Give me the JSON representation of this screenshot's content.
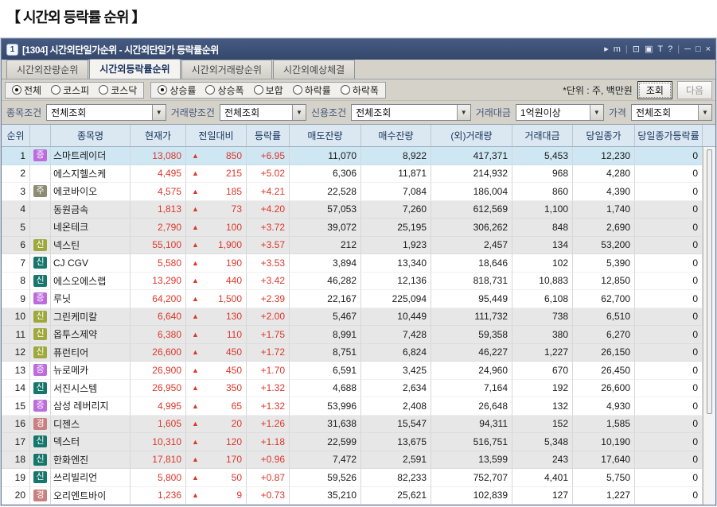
{
  "page_title": "【 시간외 등락률 순위 】",
  "window": {
    "badge": "1",
    "title": "[1304] 시간외단일가순위 - 시간외단일가 등락률순위",
    "titlebar_icons": [
      {
        "glyph": "▸",
        "name": "play-icon"
      },
      {
        "glyph": "m",
        "name": "m-icon"
      },
      {
        "glyph": "|",
        "name": "separator"
      },
      {
        "glyph": "⊡",
        "name": "restore-icon"
      },
      {
        "glyph": "▣",
        "name": "cascade-icon"
      },
      {
        "glyph": "T",
        "name": "font-icon"
      },
      {
        "glyph": "?",
        "name": "help-icon"
      },
      {
        "glyph": "|",
        "name": "separator"
      },
      {
        "glyph": "─",
        "name": "minimize-icon"
      },
      {
        "glyph": "□",
        "name": "maximize-icon"
      },
      {
        "glyph": "×",
        "name": "close-icon"
      }
    ]
  },
  "tabs": [
    {
      "label": "시간외잔량순위",
      "active": false
    },
    {
      "label": "시간외등락률순위",
      "active": true
    },
    {
      "label": "시간외거래량순위",
      "active": false
    },
    {
      "label": "시간외예상체결",
      "active": false
    }
  ],
  "radio_groups": [
    {
      "options": [
        {
          "label": "전체",
          "checked": true
        },
        {
          "label": "코스피",
          "checked": false
        },
        {
          "label": "코스닥",
          "checked": false
        }
      ]
    },
    {
      "options": [
        {
          "label": "상승률",
          "checked": true
        },
        {
          "label": "상승폭",
          "checked": false
        },
        {
          "label": "보합",
          "checked": false
        },
        {
          "label": "하락률",
          "checked": false
        },
        {
          "label": "하락폭",
          "checked": false
        }
      ]
    }
  ],
  "controls": {
    "unit_label": "*단위 : 주, 백만원",
    "inquire_label": "조회",
    "next_label": "다음"
  },
  "filters": [
    {
      "label": "종목조건",
      "value": "전체조회"
    },
    {
      "label": "거래량조건",
      "value": "전체조회"
    },
    {
      "label": "신용조건",
      "value": "전체조회"
    },
    {
      "label": "거래대금",
      "value": "1억원이상"
    },
    {
      "label": "가격",
      "value": "전체조회"
    }
  ],
  "table": {
    "columns": [
      "순위",
      "",
      "종목명",
      "현재가",
      "전일대비",
      "등락률",
      "매도잔량",
      "매수잔량",
      "(외)거래량",
      "거래대금",
      "당일종가",
      "당일종가등락률"
    ],
    "marker_colors": {
      "증": "#bd6cdd",
      "주": "#8c8c74",
      "신_olive": "#9fa93b",
      "신_teal": "#16766c",
      "경": "#c98080"
    },
    "up_triangle": "▲",
    "rows": [
      {
        "rank": "1",
        "marker": "증",
        "marker_style": "증",
        "name": "스마트레이더",
        "price": "13,080",
        "change": "850",
        "rate": "+6.95",
        "ask": "11,070",
        "bid": "8,922",
        "volume": "417,371",
        "value": "5,453",
        "close": "12,230",
        "close_rate": "0",
        "selected": true
      },
      {
        "rank": "2",
        "marker": "",
        "marker_style": "",
        "name": "에스지헬스케",
        "price": "4,495",
        "change": "215",
        "rate": "+5.02",
        "ask": "6,306",
        "bid": "11,871",
        "volume": "214,932",
        "value": "968",
        "close": "4,280",
        "close_rate": "0",
        "selected": false
      },
      {
        "rank": "3",
        "marker": "주",
        "marker_style": "주",
        "name": "에코바이오",
        "price": "4,575",
        "change": "185",
        "rate": "+4.21",
        "ask": "22,528",
        "bid": "7,084",
        "volume": "186,004",
        "value": "860",
        "close": "4,390",
        "close_rate": "0",
        "selected": false
      },
      {
        "rank": "4",
        "marker": "",
        "marker_style": "",
        "name": "동원금속",
        "price": "1,813",
        "change": "73",
        "rate": "+4.20",
        "ask": "57,053",
        "bid": "7,260",
        "volume": "612,569",
        "value": "1,100",
        "close": "1,740",
        "close_rate": "0",
        "selected": false
      },
      {
        "rank": "5",
        "marker": "",
        "marker_style": "",
        "name": "네온테크",
        "price": "2,790",
        "change": "100",
        "rate": "+3.72",
        "ask": "39,072",
        "bid": "25,195",
        "volume": "306,262",
        "value": "848",
        "close": "2,690",
        "close_rate": "0",
        "selected": false
      },
      {
        "rank": "6",
        "marker": "신",
        "marker_style": "신_olive",
        "name": "넥스틴",
        "price": "55,100",
        "change": "1,900",
        "rate": "+3.57",
        "ask": "212",
        "bid": "1,923",
        "volume": "2,457",
        "value": "134",
        "close": "53,200",
        "close_rate": "0",
        "selected": false
      },
      {
        "rank": "7",
        "marker": "신",
        "marker_style": "신_teal",
        "name": "CJ CGV",
        "price": "5,580",
        "change": "190",
        "rate": "+3.53",
        "ask": "3,894",
        "bid": "13,340",
        "volume": "18,646",
        "value": "102",
        "close": "5,390",
        "close_rate": "0",
        "selected": false
      },
      {
        "rank": "8",
        "marker": "신",
        "marker_style": "신_teal",
        "name": "에스오에스랩",
        "price": "13,290",
        "change": "440",
        "rate": "+3.42",
        "ask": "46,282",
        "bid": "12,136",
        "volume": "818,731",
        "value": "10,883",
        "close": "12,850",
        "close_rate": "0",
        "selected": false
      },
      {
        "rank": "9",
        "marker": "증",
        "marker_style": "증",
        "name": "루닛",
        "price": "64,200",
        "change": "1,500",
        "rate": "+2.39",
        "ask": "22,167",
        "bid": "225,094",
        "volume": "95,449",
        "value": "6,108",
        "close": "62,700",
        "close_rate": "0",
        "selected": false
      },
      {
        "rank": "10",
        "marker": "신",
        "marker_style": "신_olive",
        "name": "그린케미칼",
        "price": "6,640",
        "change": "130",
        "rate": "+2.00",
        "ask": "5,467",
        "bid": "10,449",
        "volume": "111,732",
        "value": "738",
        "close": "6,510",
        "close_rate": "0",
        "selected": false
      },
      {
        "rank": "11",
        "marker": "신",
        "marker_style": "신_olive",
        "name": "옵투스제약",
        "price": "6,380",
        "change": "110",
        "rate": "+1.75",
        "ask": "8,991",
        "bid": "7,428",
        "volume": "59,358",
        "value": "380",
        "close": "6,270",
        "close_rate": "0",
        "selected": false
      },
      {
        "rank": "12",
        "marker": "신",
        "marker_style": "신_olive",
        "name": "퓨런티어",
        "price": "26,600",
        "change": "450",
        "rate": "+1.72",
        "ask": "8,751",
        "bid": "6,824",
        "volume": "46,227",
        "value": "1,227",
        "close": "26,150",
        "close_rate": "0",
        "selected": false
      },
      {
        "rank": "13",
        "marker": "증",
        "marker_style": "증",
        "name": "뉴로메카",
        "price": "26,900",
        "change": "450",
        "rate": "+1.70",
        "ask": "6,591",
        "bid": "3,425",
        "volume": "24,960",
        "value": "670",
        "close": "26,450",
        "close_rate": "0",
        "selected": false
      },
      {
        "rank": "14",
        "marker": "신",
        "marker_style": "신_teal",
        "name": "서진시스템",
        "price": "26,950",
        "change": "350",
        "rate": "+1.32",
        "ask": "4,688",
        "bid": "2,634",
        "volume": "7,164",
        "value": "192",
        "close": "26,600",
        "close_rate": "0",
        "selected": false
      },
      {
        "rank": "15",
        "marker": "증",
        "marker_style": "증",
        "name": "삼성 레버리지",
        "price": "4,995",
        "change": "65",
        "rate": "+1.32",
        "ask": "53,996",
        "bid": "2,408",
        "volume": "26,648",
        "value": "132",
        "close": "4,930",
        "close_rate": "0",
        "selected": false
      },
      {
        "rank": "16",
        "marker": "경",
        "marker_style": "경",
        "name": "디젠스",
        "price": "1,605",
        "change": "20",
        "rate": "+1.26",
        "ask": "31,638",
        "bid": "15,547",
        "volume": "94,311",
        "value": "152",
        "close": "1,585",
        "close_rate": "0",
        "selected": false
      },
      {
        "rank": "17",
        "marker": "신",
        "marker_style": "신_teal",
        "name": "덱스터",
        "price": "10,310",
        "change": "120",
        "rate": "+1.18",
        "ask": "22,599",
        "bid": "13,675",
        "volume": "516,751",
        "value": "5,348",
        "close": "10,190",
        "close_rate": "0",
        "selected": false
      },
      {
        "rank": "18",
        "marker": "신",
        "marker_style": "신_teal",
        "name": "한화엔진",
        "price": "17,810",
        "change": "170",
        "rate": "+0.96",
        "ask": "7,472",
        "bid": "2,591",
        "volume": "13,599",
        "value": "243",
        "close": "17,640",
        "close_rate": "0",
        "selected": false
      },
      {
        "rank": "19",
        "marker": "신",
        "marker_style": "신_teal",
        "name": "쓰리빌리언",
        "price": "5,800",
        "change": "50",
        "rate": "+0.87",
        "ask": "59,526",
        "bid": "82,233",
        "volume": "752,707",
        "value": "4,401",
        "close": "5,750",
        "close_rate": "0",
        "selected": false
      },
      {
        "rank": "20",
        "marker": "경",
        "marker_style": "경",
        "name": "오리엔트바이",
        "price": "1,236",
        "change": "9",
        "rate": "+0.73",
        "ask": "35,210",
        "bid": "25,621",
        "volume": "102,839",
        "value": "127",
        "close": "1,227",
        "close_rate": "0",
        "selected": false
      }
    ]
  },
  "colors": {
    "titlebar_bg": "#3c4f76",
    "header_bg": "#dce8f1",
    "up_red": "#dc372a",
    "selected_row_bg": "#cfe7f3",
    "band_gray": "#e7e7e7"
  }
}
